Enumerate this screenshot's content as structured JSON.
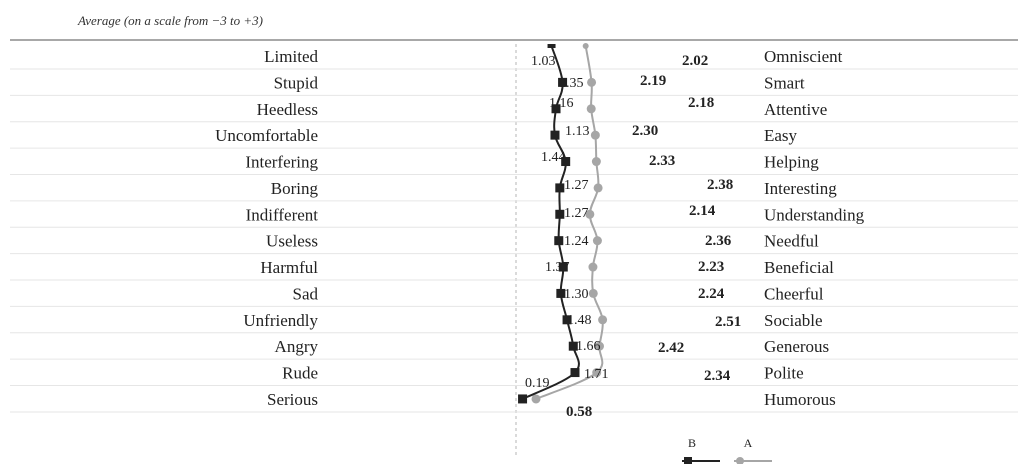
{
  "chart_data": {
    "type": "line",
    "subtitle": "Average (on a scale from −3 to +3)",
    "categories_left": [
      "Limited",
      "Stupid",
      "Heedless",
      "Uncomfortable",
      "Interfering",
      "Boring",
      "Indifferent",
      "Useless",
      "Harmful",
      "Sad",
      "Unfriendly",
      "Angry",
      "Rude",
      "Serious"
    ],
    "categories_right": [
      "Omniscient",
      "Smart",
      "Attentive",
      "Easy",
      "Helping",
      "Interesting",
      "Understanding",
      "Needful",
      "Beneficial",
      "Cheerful",
      "Sociable",
      "Generous",
      "Polite",
      "Humorous"
    ],
    "series": [
      {
        "name": "B",
        "values": [
          1.03,
          1.35,
          1.16,
          1.13,
          1.44,
          1.27,
          1.27,
          1.24,
          1.37,
          1.3,
          1.48,
          1.66,
          1.71,
          0.19
        ],
        "color": "#222222",
        "marker": "square"
      },
      {
        "name": "A",
        "values": [
          2.02,
          2.19,
          2.18,
          2.3,
          2.33,
          2.38,
          2.14,
          2.36,
          2.23,
          2.24,
          2.51,
          2.42,
          2.34,
          0.58
        ],
        "color": "#a6a6a6",
        "marker": "circle"
      }
    ],
    "value_labels": {
      "B": [
        "1.03",
        "1.35",
        "1.16",
        "1.13",
        "1.44",
        "1.27",
        "1.27",
        "1.24",
        "1.37",
        "1.30",
        "1.48",
        "1.66",
        "1.71",
        "0.19"
      ],
      "A": [
        "2.02",
        "2.19",
        "2.18",
        "2.30",
        "2.33",
        "2.38",
        "2.14",
        "2.36",
        "2.23",
        "2.24",
        "2.51",
        "2.42",
        "2.34",
        "0.58"
      ]
    },
    "xlim": [
      -3,
      3
    ],
    "legend": [
      "B",
      "A"
    ],
    "legend_position": "bottom-center"
  }
}
